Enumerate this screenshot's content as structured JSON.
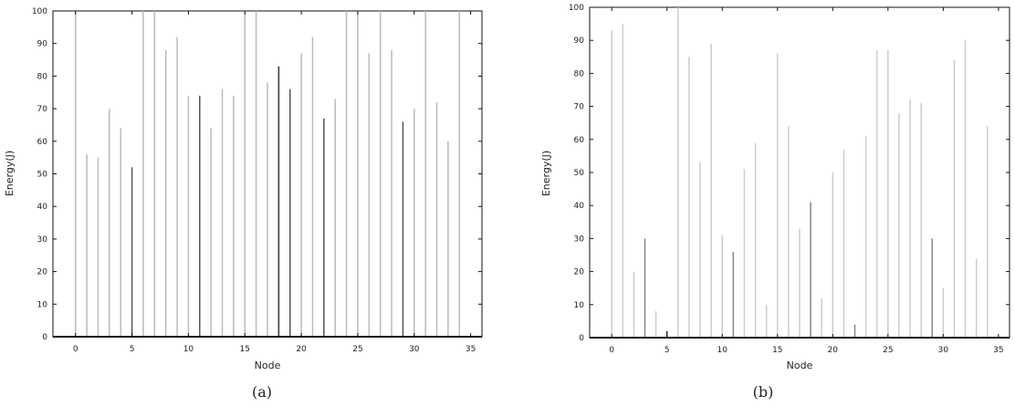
{
  "chart_data": [
    {
      "type": "bar",
      "caption": "(a)",
      "xlabel": "Node",
      "ylabel": "Energy(J)",
      "xlim": [
        -2,
        36
      ],
      "ylim": [
        0,
        100
      ],
      "xticks": [
        0,
        5,
        10,
        15,
        20,
        25,
        30,
        35
      ],
      "yticks": [
        0,
        10,
        20,
        30,
        40,
        50,
        60,
        70,
        80,
        90,
        100
      ],
      "x": [
        0,
        1,
        2,
        3,
        4,
        5,
        6,
        7,
        8,
        9,
        10,
        11,
        12,
        13,
        14,
        15,
        16,
        17,
        18,
        19,
        20,
        21,
        22,
        23,
        24,
        25,
        26,
        27,
        28,
        29,
        30,
        31,
        32,
        33,
        34
      ],
      "values": [
        100,
        56,
        55,
        70,
        64,
        52,
        100,
        100,
        88,
        92,
        74,
        74,
        64,
        76,
        74,
        100,
        100,
        78,
        83,
        76,
        87,
        92,
        67,
        73,
        100,
        100,
        87,
        100,
        88,
        66,
        70,
        100,
        72,
        60,
        100
      ],
      "bar_colors": [
        "#bbbbbb",
        "#bbbbbb",
        "#bbbbbb",
        "#bbbbbb",
        "#bbbbbb",
        "#555555",
        "#bbbbbb",
        "#bbbbbb",
        "#bbbbbb",
        "#bbbbbb",
        "#bbbbbb",
        "#555555",
        "#bbbbbb",
        "#bbbbbb",
        "#bbbbbb",
        "#bbbbbb",
        "#bbbbbb",
        "#bbbbbb",
        "#333333",
        "#555555",
        "#bbbbbb",
        "#bbbbbb",
        "#555555",
        "#bbbbbb",
        "#bbbbbb",
        "#bbbbbb",
        "#bbbbbb",
        "#bbbbbb",
        "#bbbbbb",
        "#555555",
        "#bbbbbb",
        "#bbbbbb",
        "#bbbbbb",
        "#bbbbbb",
        "#bbbbbb"
      ],
      "grid": false
    },
    {
      "type": "bar",
      "caption": "(b)",
      "xlabel": "Node",
      "ylabel": "Energy(J)",
      "xlim": [
        -2,
        36
      ],
      "ylim": [
        0,
        100
      ],
      "xticks": [
        0,
        5,
        10,
        15,
        20,
        25,
        30,
        35
      ],
      "yticks": [
        0,
        10,
        20,
        30,
        40,
        50,
        60,
        70,
        80,
        90,
        100
      ],
      "x": [
        0,
        1,
        2,
        3,
        4,
        5,
        6,
        7,
        8,
        9,
        10,
        11,
        12,
        13,
        14,
        15,
        16,
        17,
        18,
        19,
        20,
        21,
        22,
        23,
        24,
        25,
        26,
        27,
        28,
        29,
        30,
        31,
        32,
        33,
        34
      ],
      "values": [
        93,
        95,
        20,
        30,
        8,
        2,
        100,
        85,
        53,
        89,
        31,
        26,
        51,
        59,
        10,
        86,
        64,
        33,
        41,
        12,
        50,
        57,
        4,
        61,
        87,
        87,
        68,
        72,
        71,
        30,
        15,
        84,
        90,
        24,
        64
      ],
      "bar_colors": [
        "#cccccc",
        "#cccccc",
        "#cccccc",
        "#888888",
        "#cccccc",
        "#333333",
        "#cccccc",
        "#cccccc",
        "#cccccc",
        "#cccccc",
        "#cccccc",
        "#888888",
        "#cccccc",
        "#cccccc",
        "#cccccc",
        "#cccccc",
        "#cccccc",
        "#cccccc",
        "#888888",
        "#cccccc",
        "#cccccc",
        "#cccccc",
        "#888888",
        "#cccccc",
        "#cccccc",
        "#cccccc",
        "#cccccc",
        "#cccccc",
        "#cccccc",
        "#888888",
        "#cccccc",
        "#cccccc",
        "#cccccc",
        "#cccccc",
        "#cccccc"
      ],
      "grid": false
    }
  ]
}
